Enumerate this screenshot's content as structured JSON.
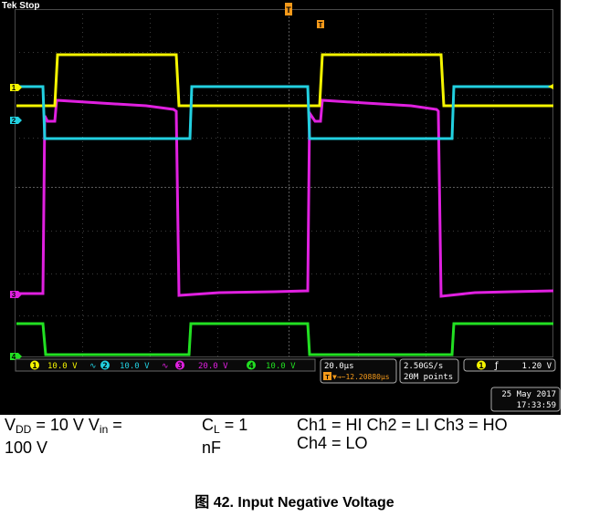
{
  "scope": {
    "status": "Tek Stop",
    "trigger_marker": "T",
    "channels": [
      {
        "num": "1",
        "scale": "10.0 V",
        "color": "#f5f500"
      },
      {
        "num": "2",
        "scale": "10.0 V",
        "color": "#22d0e0"
      },
      {
        "num": "3",
        "scale": "20.0 V",
        "color": "#e020e0"
      },
      {
        "num": "4",
        "scale": "10.0 V",
        "color": "#22e022"
      }
    ],
    "bw_symbol": "∿",
    "timebase": "20.0µs",
    "trigger_pos": "▼→−12.20880µs",
    "sample_rate": "2.50GS/s",
    "record_length": "20M points",
    "trigger_channel": "1",
    "trigger_slope": "ƒ",
    "trigger_level": "1.20 V",
    "date": "25 May 2017",
    "time": "17:33:59"
  },
  "caption": {
    "col1_vdd_label": "V",
    "col1_vdd_sub": "DD",
    "col1_vdd_value": " = 10 V V",
    "col1_vin_sub": "in",
    "col1_vin_value": " =",
    "col1_line2": "100 V",
    "col2_cl_label": "C",
    "col2_cl_sub": "L",
    "col2_cl_value": " = 1",
    "col2_line2": "nF",
    "col3_line1": "Ch1 = HI Ch2 = LI Ch3 = HO",
    "col3_line2": "Ch4 = LO"
  },
  "figure_title": "图 42. Input Negative Voltage"
}
